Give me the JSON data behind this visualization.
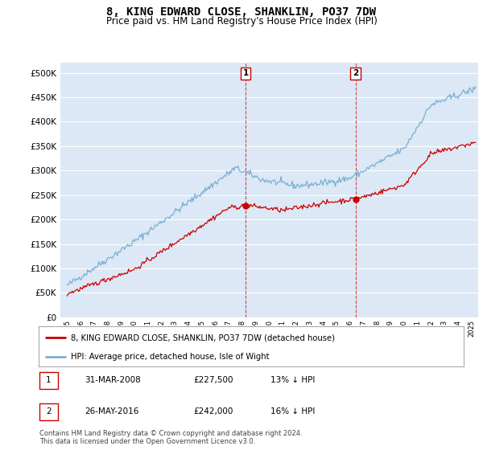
{
  "title": "8, KING EDWARD CLOSE, SHANKLIN, PO37 7DW",
  "subtitle": "Price paid vs. HM Land Registry's House Price Index (HPI)",
  "title_fontsize": 10,
  "subtitle_fontsize": 8.5,
  "background_color": "#ffffff",
  "plot_bg_color": "#dce8f5",
  "grid_color": "#ffffff",
  "ylim": [
    0,
    520000
  ],
  "yticks": [
    0,
    50000,
    100000,
    150000,
    200000,
    250000,
    300000,
    350000,
    400000,
    450000,
    500000
  ],
  "ytick_labels": [
    "£0",
    "£50K",
    "£100K",
    "£150K",
    "£200K",
    "£250K",
    "£300K",
    "£350K",
    "£400K",
    "£450K",
    "£500K"
  ],
  "xlim_start": 1994.5,
  "xlim_end": 2025.5,
  "sale1_x": 2008.25,
  "sale1_y": 227500,
  "sale1_label": "1",
  "sale1_date": "31-MAR-2008",
  "sale1_price": "£227,500",
  "sale1_hpi": "13% ↓ HPI",
  "sale2_x": 2016.4,
  "sale2_y": 242000,
  "sale2_label": "2",
  "sale2_date": "26-MAY-2016",
  "sale2_price": "£242,000",
  "sale2_hpi": "16% ↓ HPI",
  "legend_line1": "8, KING EDWARD CLOSE, SHANKLIN, PO37 7DW (detached house)",
  "legend_line2": "HPI: Average price, detached house, Isle of Wight",
  "footer": "Contains HM Land Registry data © Crown copyright and database right 2024.\nThis data is licensed under the Open Government Licence v3.0.",
  "red_color": "#cc0000",
  "blue_color": "#7bafd4",
  "sale_marker_color": "#cc0000",
  "vline_color": "#cc0000"
}
